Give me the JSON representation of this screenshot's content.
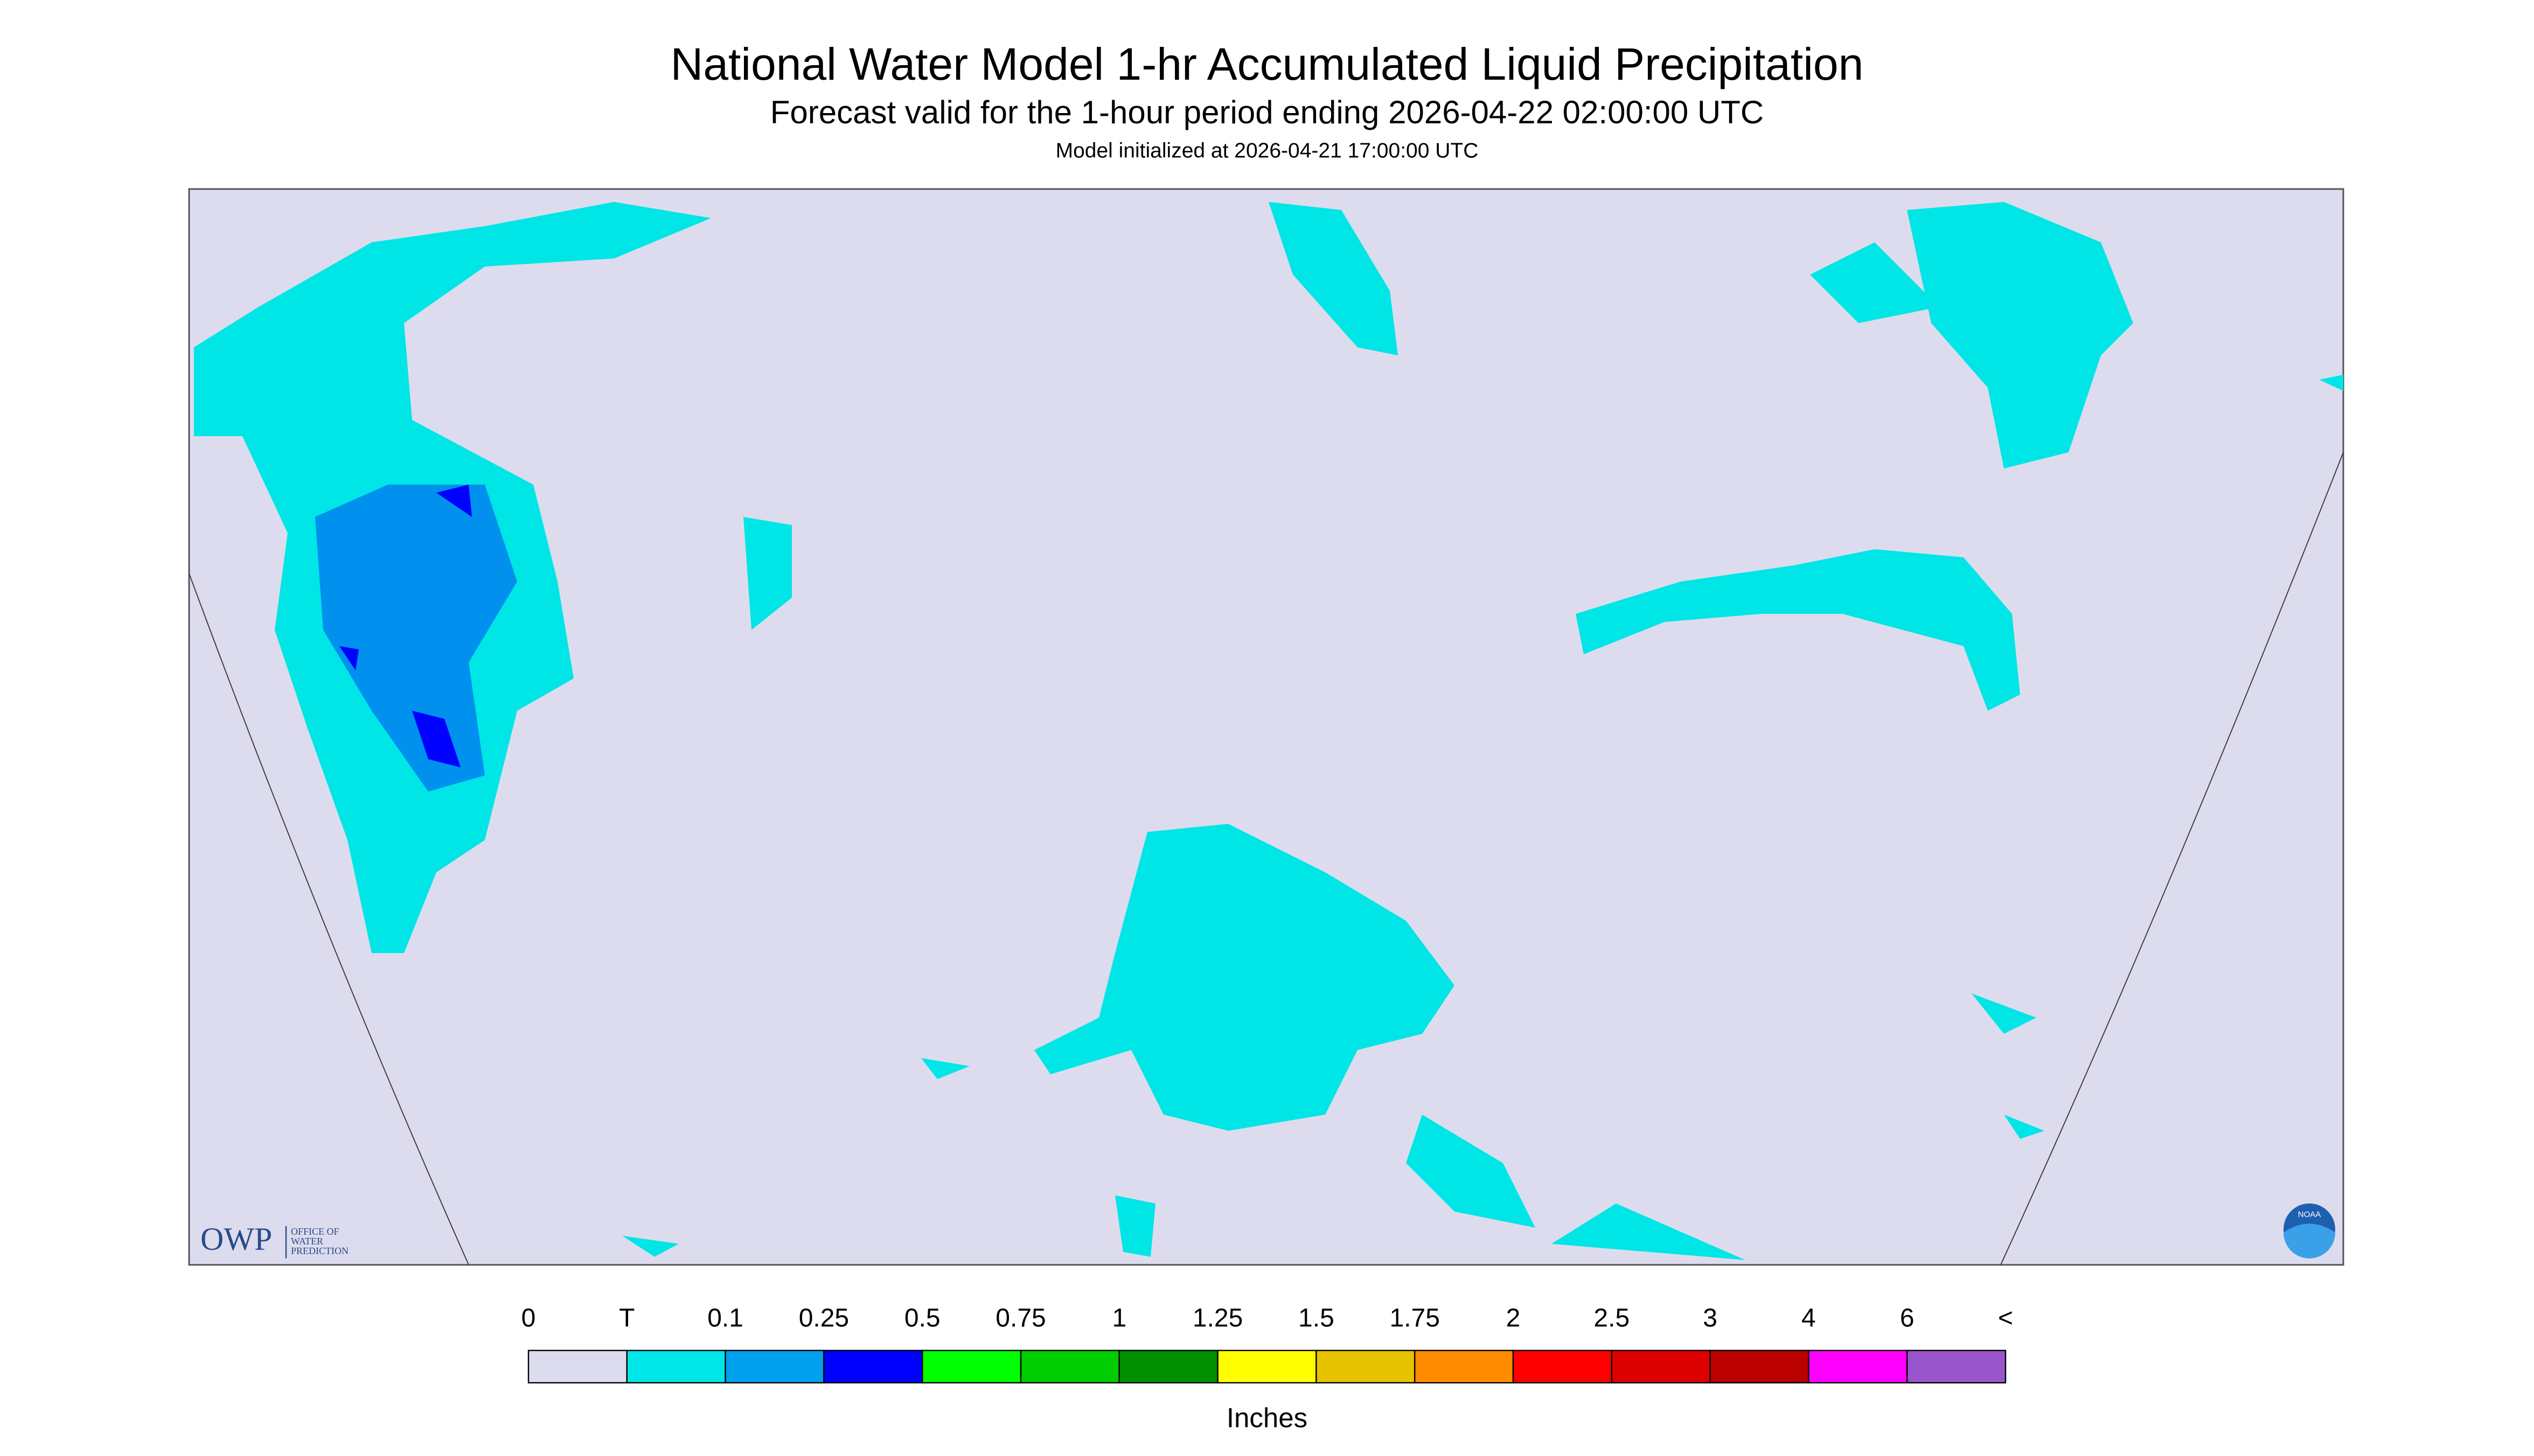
{
  "header": {
    "title": "National Water Model 1-hr Accumulated Liquid Precipitation",
    "subtitle": "Forecast valid for the 1-hour period ending 2026-04-22 02:00:00 UTC",
    "init": "Model initialized at 2026-04-21 17:00:00 UTC"
  },
  "map": {
    "owp": "OWP",
    "owp_lines": [
      "OFFICE OF",
      "WATER",
      "PREDICTION"
    ],
    "noaa": "NOAA"
  },
  "legend": {
    "labels": [
      "0",
      "T",
      "0.1",
      "0.25",
      "0.5",
      "0.75",
      "1",
      "1.25",
      "1.5",
      "1.75",
      "2",
      "2.5",
      "3",
      "4",
      "6",
      "<"
    ],
    "colors": [
      "#dcdcee",
      "#00e5e5",
      "#00a0ee",
      "#0000ff",
      "#00ff00",
      "#00cc00",
      "#009000",
      "#ffff00",
      "#e6c200",
      "#ff8c00",
      "#ff0000",
      "#dd0000",
      "#bb0000",
      "#ff00ff",
      "#9955cc"
    ],
    "unit": "Inches"
  }
}
